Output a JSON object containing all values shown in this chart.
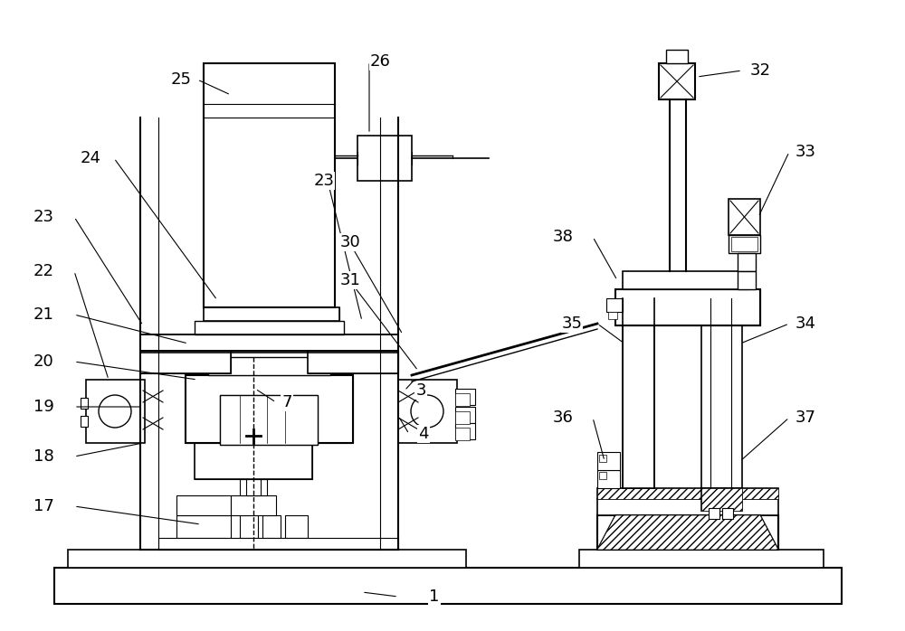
{
  "bg_color": "#ffffff",
  "fig_width": 10.0,
  "fig_height": 6.98,
  "dpi": 100,
  "label_fs": 13,
  "lw": 1.0,
  "lw2": 1.5
}
